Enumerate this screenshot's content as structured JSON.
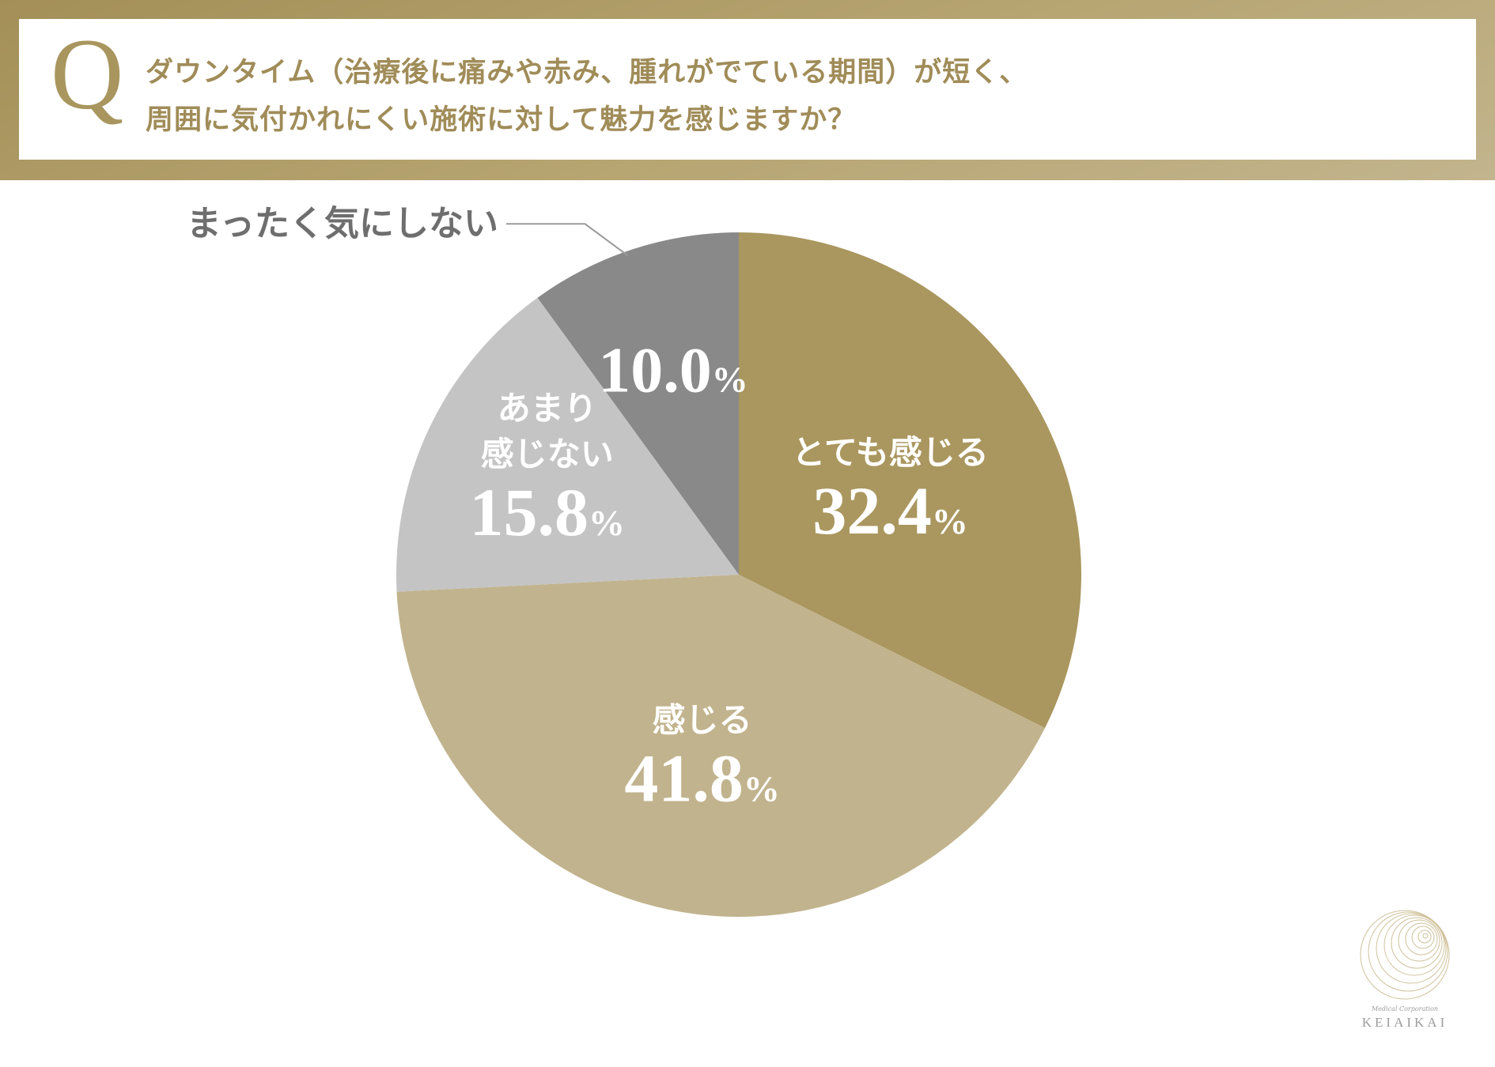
{
  "question": {
    "mark": "Q",
    "line1": "ダウンタイム（治療後に痛みや赤み、腫れがでている期間）が短く、",
    "line2": "周囲に気付かれにくい施術に対して魅力を感じますか？"
  },
  "chart_data": {
    "type": "pie",
    "unit": "%",
    "slices": [
      {
        "label": "とても感じる",
        "label_lines": [
          "とても感じる"
        ],
        "value": 32.4,
        "display": "32.4",
        "color": "#aa975f"
      },
      {
        "label": "感じる",
        "label_lines": [
          "感じる"
        ],
        "value": 41.8,
        "display": "41.8",
        "color": "#c1b38d"
      },
      {
        "label": "あまり感じない",
        "label_lines": [
          "あまり",
          "感じない"
        ],
        "value": 15.8,
        "display": "15.8",
        "color": "#c4c4c4"
      },
      {
        "label": "まったく気にしない",
        "label_lines": [
          "まったく気にしない"
        ],
        "value": 10.0,
        "display": "10.0",
        "color": "#898989",
        "label_outside": true
      }
    ],
    "start": "top",
    "direction": "clockwise",
    "legend": "none"
  },
  "logo": {
    "small": "Medical Corporation",
    "name": "KEIAIKAI"
  }
}
